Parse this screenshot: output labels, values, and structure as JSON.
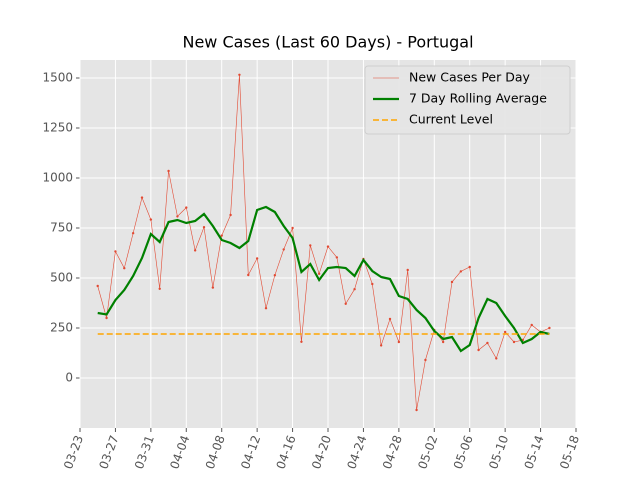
{
  "chart_data": {
    "type": "line",
    "title": "New Cases (Last 60 Days) - Portugal",
    "x": [
      "03-25",
      "03-26",
      "03-27",
      "03-28",
      "03-29",
      "03-30",
      "03-31",
      "04-01",
      "04-02",
      "04-03",
      "04-04",
      "04-05",
      "04-06",
      "04-07",
      "04-08",
      "04-09",
      "04-10",
      "04-11",
      "04-12",
      "04-13",
      "04-14",
      "04-15",
      "04-16",
      "04-17",
      "04-18",
      "04-19",
      "04-20",
      "04-21",
      "04-22",
      "04-23",
      "04-24",
      "04-25",
      "04-26",
      "04-27",
      "04-28",
      "04-29",
      "04-30",
      "05-01",
      "05-02",
      "05-03",
      "05-04",
      "05-05",
      "05-06",
      "05-07",
      "05-08",
      "05-09",
      "05-10",
      "05-11",
      "05-12",
      "05-13",
      "05-14",
      "05-15"
    ],
    "series": [
      {
        "name": "New Cases Per Day",
        "color": "#e24a33",
        "values": [
          460,
          300,
          633,
          549,
          724,
          902,
          792,
          446,
          1035,
          808,
          852,
          638,
          754,
          452,
          712,
          815,
          1516,
          515,
          598,
          349,
          514,
          643,
          750,
          181,
          663,
          521,
          657,
          603,
          371,
          444,
          595,
          470,
          163,
          295,
          180,
          540,
          -160,
          90,
          240,
          180,
          480,
          533,
          555,
          140,
          175,
          98,
          230,
          180,
          190,
          265,
          230,
          250
        ]
      },
      {
        "name": "7 Day Rolling Average",
        "color": "#008000",
        "values": [
          325,
          318,
          390,
          440,
          510,
          600,
          720,
          680,
          780,
          790,
          775,
          785,
          820,
          760,
          690,
          675,
          650,
          685,
          840,
          855,
          830,
          760,
          700,
          530,
          570,
          490,
          550,
          555,
          550,
          510,
          590,
          535,
          505,
          495,
          410,
          395,
          340,
          300,
          235,
          195,
          205,
          135,
          165,
          300,
          395,
          375,
          310,
          250,
          175,
          195,
          230,
          220
        ]
      },
      {
        "name": "Current Level",
        "color": "#ffa500",
        "value": 220
      }
    ],
    "xlim": [
      "03-23",
      "05-18"
    ],
    "xticks": [
      "03-23",
      "03-27",
      "03-31",
      "04-04",
      "04-08",
      "04-12",
      "04-16",
      "04-20",
      "04-24",
      "04-28",
      "05-02",
      "05-06",
      "05-10",
      "05-14",
      "05-18"
    ],
    "ylim": [
      -250,
      1590
    ],
    "yticks": [
      0,
      250,
      500,
      750,
      1000,
      1250,
      1500
    ],
    "grid": true,
    "legend": "upper right"
  }
}
